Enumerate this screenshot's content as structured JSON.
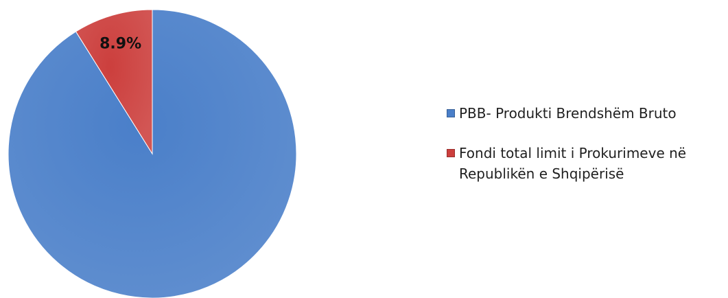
{
  "chart_data": {
    "type": "pie",
    "title": "",
    "slices": [
      {
        "name": "PBB- Produkti Brendshëm Bruto",
        "value": 91.1,
        "color": "#4a7fc9",
        "label": ""
      },
      {
        "name": "Fondi total limit i Prokurimeve në Republikën e Shqipërisë",
        "value": 8.9,
        "color": "#cc3f3d",
        "label": "8.9%"
      }
    ],
    "legend_position": "right",
    "start_angle": "top",
    "direction": "counter-clockwise from top for second slice"
  }
}
